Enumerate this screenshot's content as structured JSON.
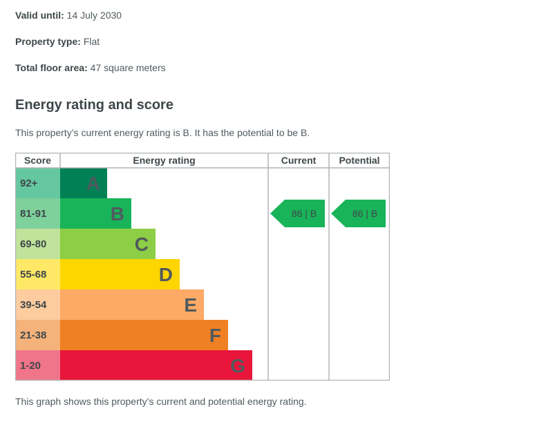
{
  "details": {
    "valid_until": {
      "label": "Valid until:",
      "value": "14 July 2030"
    },
    "property_type": {
      "label": "Property type:",
      "value": "Flat"
    },
    "floor_area": {
      "label": "Total floor area:",
      "value": "47 square meters"
    }
  },
  "section": {
    "heading": "Energy rating and score",
    "intro": "This property’s current energy rating is B. It has the potential to be B.",
    "caption": "This graph shows this property’s current and potential energy rating."
  },
  "chart_data": {
    "type": "table",
    "columns": [
      "Score",
      "Energy rating",
      "Current",
      "Potential"
    ],
    "bands": [
      {
        "score": "92+",
        "rating": "A",
        "color": "#008054",
        "score_bg": "#64c7a0"
      },
      {
        "score": "81-91",
        "rating": "B",
        "color": "#19b459",
        "score_bg": "#7ed19b"
      },
      {
        "score": "69-80",
        "rating": "C",
        "color": "#8dce46",
        "score_bg": "#bfe39a"
      },
      {
        "score": "55-68",
        "rating": "D",
        "color": "#ffd500",
        "score_bg": "#ffe866"
      },
      {
        "score": "39-54",
        "rating": "E",
        "color": "#fcaa65",
        "score_bg": "#fdcc9f"
      },
      {
        "score": "21-38",
        "rating": "F",
        "color": "#ef8023",
        "score_bg": "#f5b27b"
      },
      {
        "score": "1-20",
        "rating": "G",
        "color": "#e9153b",
        "score_bg": "#f0758a"
      }
    ],
    "current": {
      "score": 86,
      "rating": "B",
      "label": "86 | B",
      "color": "#19b459"
    },
    "potential": {
      "score": 86,
      "rating": "B",
      "label": "86 | B",
      "color": "#19b459"
    },
    "colors": {
      "grid": "#b1b4b6",
      "band_letter": "#505a5f",
      "score_text": "#3e4649",
      "marker_text": "#3e4649"
    }
  }
}
